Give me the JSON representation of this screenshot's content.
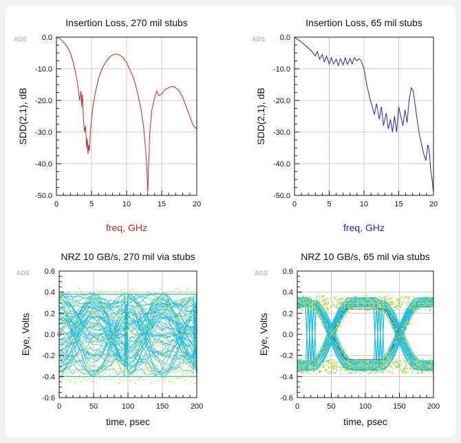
{
  "chart_data": [
    {
      "type": "line",
      "title": "Insertion Loss, 270 mil stubs",
      "xlabel": "freq, GHz",
      "ylabel": "SDD(2,1), dB",
      "watermark": "ADS",
      "xlim": [
        0,
        20
      ],
      "ylim": [
        -50,
        0
      ],
      "xticks": [
        0,
        5,
        10,
        15,
        20
      ],
      "yticks": [
        -50,
        -40,
        -30,
        -20,
        -10,
        0
      ],
      "grid": true,
      "colors": {
        "series": "#cc2222",
        "xlabel": "#cc2222"
      },
      "series": [
        {
          "x": [
            0,
            0.5,
            1,
            1.5,
            2,
            2.4,
            2.8,
            3.1,
            3.3,
            3.5,
            3.6,
            3.7,
            3.85,
            4.0,
            4.15,
            4.3,
            4.4,
            4.5,
            4.6,
            4.7,
            4.8,
            5.0,
            5.2,
            5.5,
            6,
            6.5,
            7,
            7.5,
            8,
            8.5,
            9,
            9.5,
            10,
            10.5,
            11,
            11.5,
            12,
            12.4,
            12.7,
            12.9,
            13.0,
            13.05,
            13.15,
            13.3,
            13.6,
            14,
            14.3,
            14.6,
            15,
            15.5,
            16,
            16.5,
            17,
            17.5,
            18,
            18.5,
            19,
            19.5,
            20
          ],
          "y": [
            0,
            -0.5,
            -1.5,
            -3,
            -5,
            -8,
            -12,
            -16,
            -20,
            -17,
            -22,
            -18,
            -26,
            -30,
            -28,
            -35,
            -32,
            -37,
            -34,
            -36,
            -31,
            -26,
            -22,
            -18,
            -13,
            -10,
            -8,
            -6.5,
            -5.6,
            -5.4,
            -5.6,
            -6.5,
            -8,
            -10.5,
            -13,
            -17,
            -22,
            -28,
            -35,
            -42,
            -49,
            -47,
            -40,
            -30,
            -23,
            -19,
            -17,
            -18.5,
            -18,
            -16.5,
            -16,
            -15.5,
            -16,
            -17,
            -19,
            -22,
            -25,
            -28,
            -29
          ]
        }
      ]
    },
    {
      "type": "line",
      "title": "Insertion Loss, 65 mil stubs",
      "xlabel": "freq, GHz",
      "ylabel": "SDD(2,1), dB",
      "watermark": "ADS",
      "xlim": [
        0,
        20
      ],
      "ylim": [
        -50,
        0
      ],
      "xticks": [
        0,
        5,
        10,
        15,
        20
      ],
      "yticks": [
        -50,
        -40,
        -30,
        -20,
        -10,
        0
      ],
      "grid": true,
      "colors": {
        "series": "#2222bb",
        "xlabel": "#2222bb"
      },
      "series": [
        {
          "x": [
            0,
            0.5,
            1,
            1.5,
            2,
            2.5,
            3,
            3.3,
            3.6,
            4,
            4.3,
            4.6,
            5,
            5.3,
            5.6,
            6,
            6.3,
            6.6,
            7,
            7.3,
            7.6,
            8,
            8.3,
            8.6,
            9,
            9.3,
            9.6,
            10,
            10.4,
            10.8,
            11.2,
            11.5,
            11.8,
            12.2,
            12.5,
            12.8,
            13.2,
            13.5,
            13.8,
            14.1,
            14.4,
            14.7,
            15,
            15.3,
            15.6,
            15.9,
            16.2,
            16.5,
            16.8,
            17.1,
            17.4,
            17.7,
            18,
            18.3,
            18.6,
            18.9,
            19.2,
            19.4,
            19.6,
            19.8,
            20
          ],
          "y": [
            0,
            -0.8,
            -1.5,
            -2.5,
            -3.5,
            -4.5,
            -6,
            -4.5,
            -7,
            -5.5,
            -7.8,
            -6,
            -8.5,
            -6.5,
            -8.5,
            -7,
            -9,
            -6.8,
            -8.8,
            -6.5,
            -8.6,
            -6.8,
            -8.5,
            -6.5,
            -7.5,
            -6.8,
            -7.5,
            -10,
            -15,
            -19,
            -22,
            -24.5,
            -21,
            -26,
            -22,
            -28,
            -24,
            -29,
            -26,
            -30,
            -25,
            -30,
            -22,
            -25,
            -28,
            -23,
            -27,
            -20,
            -16,
            -17,
            -22,
            -27,
            -31,
            -34,
            -37,
            -39,
            -34,
            -36,
            -42,
            -45,
            -49
          ]
        }
      ]
    },
    {
      "type": "line",
      "title": "NRZ 10 GB/s, 270 mil via stubs",
      "xlabel": "time, psec",
      "ylabel": "Eye, Volts",
      "watermark": "ADS",
      "xlim": [
        0,
        200
      ],
      "ylim": [
        -0.6,
        0.6
      ],
      "xticks": [
        0,
        50,
        100,
        150,
        200
      ],
      "yticks": [
        -0.6,
        -0.4,
        -0.2,
        0.0,
        0.2,
        0.4,
        0.6
      ],
      "grid": true,
      "colors": {
        "traces": "#22bbdd",
        "dense": "#c8e848",
        "hot": "#e8e030"
      },
      "eye": {
        "period": 100,
        "levels": [
          -0.4,
          -0.3,
          -0.2,
          -0.1,
          0,
          0.1,
          0.2,
          0.3,
          0.38
        ]
      }
    },
    {
      "type": "line",
      "title": "NRZ 10 GB/s, 65 mil via stubs",
      "xlabel": "time, psec",
      "ylabel": "Eye, Volts",
      "watermark": "ADS",
      "xlim": [
        0,
        200
      ],
      "ylim": [
        -0.6,
        0.6
      ],
      "xticks": [
        0,
        50,
        100,
        150,
        200
      ],
      "yticks": [
        -0.6,
        -0.4,
        -0.2,
        0.0,
        0.2,
        0.4,
        0.6
      ],
      "grid": true,
      "colors": {
        "traces": "#22bbdd",
        "dense": "#80d060",
        "hot": "#e8e030",
        "outline": "#555577"
      },
      "eye": {
        "period": 100,
        "crossings": [
          50,
          150
        ],
        "levels": [
          -0.33,
          -0.27,
          0.27,
          0.33
        ]
      }
    }
  ]
}
